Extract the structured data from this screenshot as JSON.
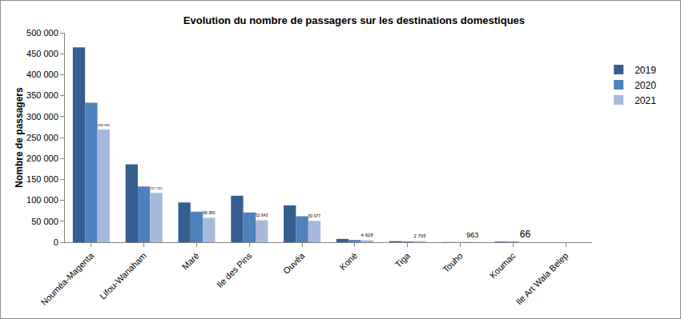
{
  "chart_data": {
    "type": "bar",
    "title": "Evolution du nombre de passagers sur les destinations domestiques",
    "y_label": "Nombre de passagers",
    "categories": [
      "Nouméa-Magenta",
      "Lifou-Wanaham",
      "Maré",
      "Ile des Pins",
      "Ouvéa",
      "Koné",
      "Tiga",
      "Touho",
      "Koumac",
      "Ile Art Wala Belep"
    ],
    "series": [
      {
        "name": "2019",
        "color": "#365f91",
        "values": [
          465000,
          186000,
          95000,
          111000,
          88000,
          8000,
          2500,
          500,
          1500,
          0
        ]
      },
      {
        "name": "2020",
        "color": "#4f81bd",
        "values": [
          333000,
          133000,
          73000,
          71000,
          62000,
          5500,
          2000,
          500,
          1500,
          0
        ]
      },
      {
        "name": "2021",
        "color": "#a6b9da",
        "values": [
          268936,
          117731,
          58380,
          52643,
          50977,
          4628,
          2705,
          963,
          66,
          null
        ],
        "data_labels": true,
        "value_labels": [
          "268 936",
          "117 731",
          "58 380",
          "52 643",
          "50 977",
          "4 628",
          "2 705",
          "963",
          "66",
          null
        ]
      }
    ],
    "ylim": [
      0,
      500000
    ],
    "yticks": [
      0,
      {
        "value": 50000,
        "label": "50 000"
      },
      {
        "value": 100000,
        "label": "100 000"
      },
      {
        "value": 150000,
        "label": "150 000"
      },
      {
        "value": 200000,
        "label": "200 000"
      },
      {
        "value": 250000,
        "label": "250 000"
      },
      {
        "value": 300000,
        "label": "300 000"
      },
      {
        "value": 350000,
        "label": "350 000"
      },
      {
        "value": 400000,
        "label": "400 000"
      },
      {
        "value": 450000,
        "label": "450 000"
      },
      {
        "value": 500000,
        "label": "500 000"
      }
    ],
    "grid": false,
    "legend": "top right"
  }
}
